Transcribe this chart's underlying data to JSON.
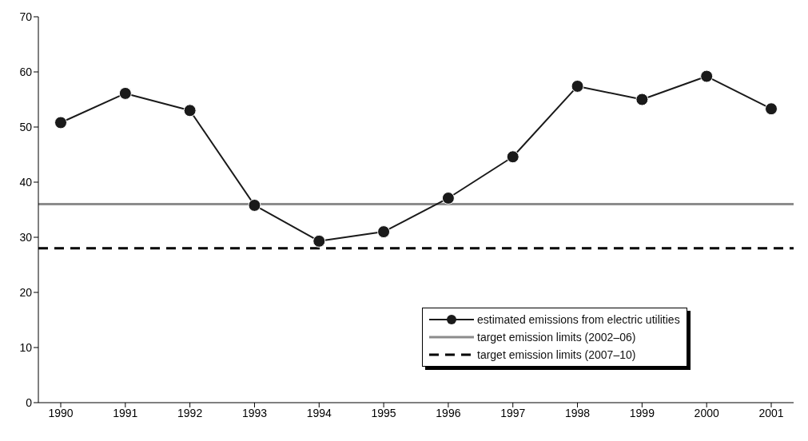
{
  "chart_data": {
    "type": "line",
    "categories": [
      "1990",
      "1991",
      "1992",
      "1993",
      "1994",
      "1995",
      "1996",
      "1997",
      "1998",
      "1999",
      "2000",
      "2001"
    ],
    "series": [
      {
        "name": "estimated emissions from electric utilities",
        "color": "#1a1a1a",
        "values": [
          50.8,
          56.1,
          53,
          35.8,
          29.3,
          31,
          37.1,
          44.6,
          57.4,
          55,
          59.2,
          53.3
        ]
      }
    ],
    "ylim": [
      0,
      70
    ],
    "yticks": [
      0,
      10,
      20,
      30,
      40,
      50,
      60,
      70
    ],
    "grid": false,
    "marker": "circle",
    "line_style": "solid",
    "legend": "bottom right",
    "ref_lines": [
      {
        "axis": "y",
        "value": 36,
        "label": "target emission limits (2002–06)",
        "color": "#8c8c8c",
        "line_style": "solid"
      },
      {
        "axis": "y",
        "value": 28,
        "label": "target emission limits (2007–10)",
        "color": "#000000",
        "line_style": "dashed"
      }
    ]
  }
}
